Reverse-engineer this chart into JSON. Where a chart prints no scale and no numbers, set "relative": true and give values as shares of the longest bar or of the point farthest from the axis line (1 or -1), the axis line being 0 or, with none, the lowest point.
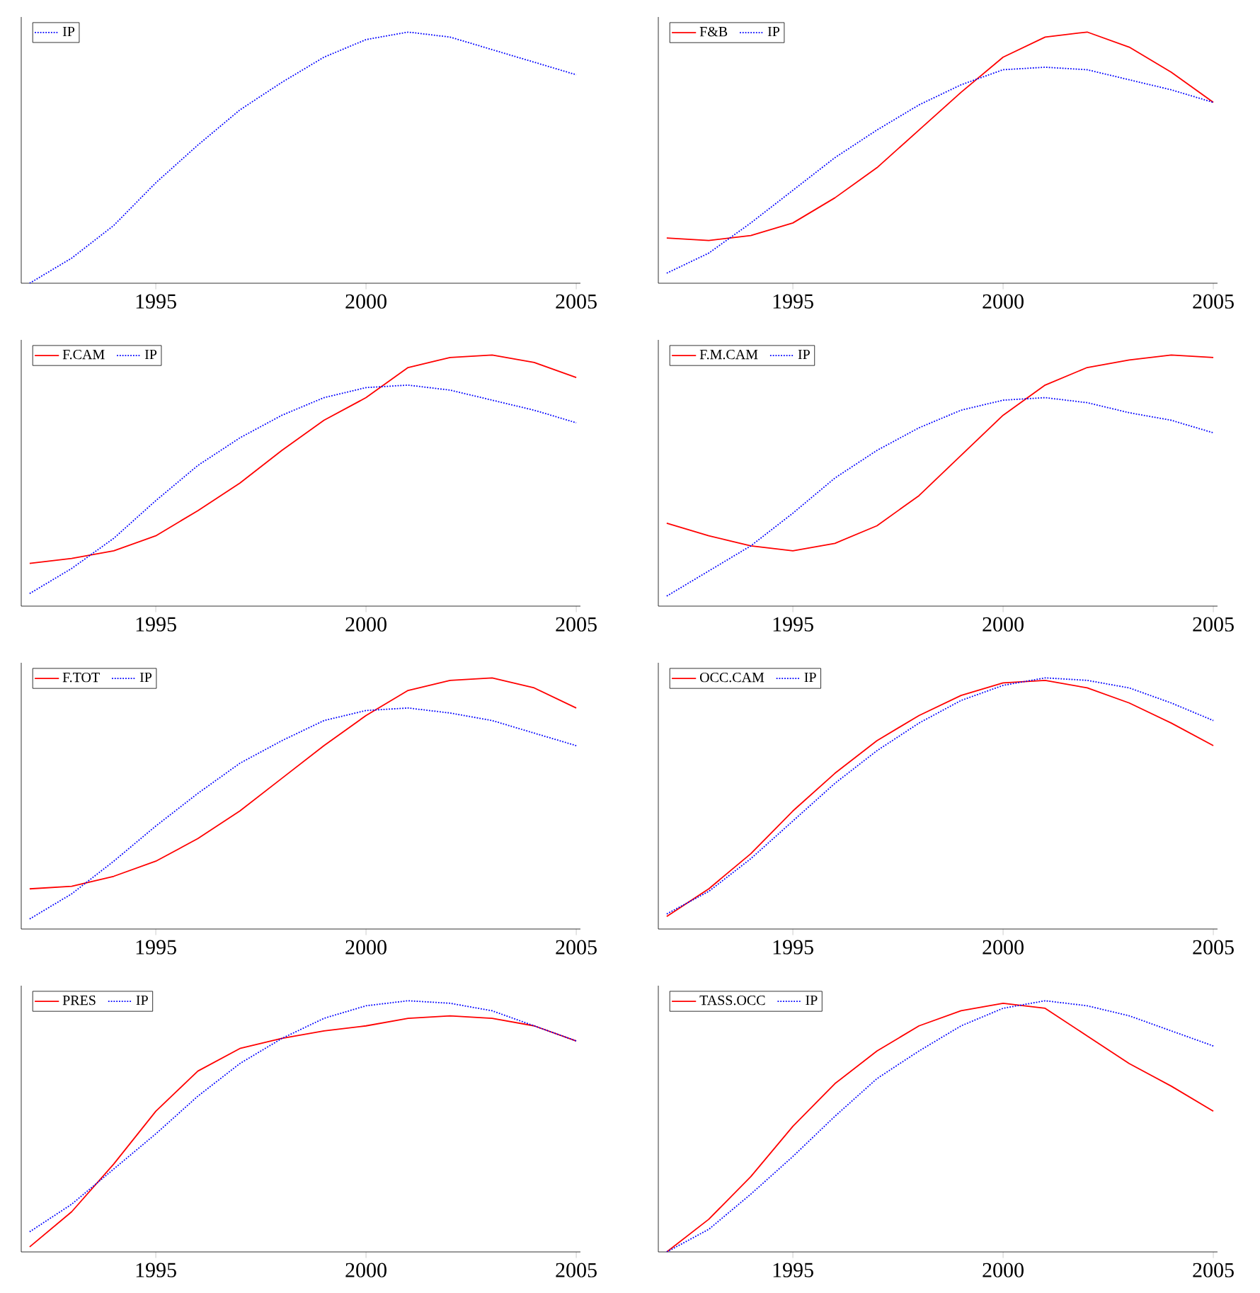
{
  "chart_data": [
    {
      "type": "line",
      "relative": true,
      "legend": "top left",
      "x": [
        1992,
        1993,
        1994,
        1995,
        1996,
        1997,
        1998,
        1999,
        2000,
        2001,
        2002,
        2003,
        2004,
        2005
      ],
      "xlim": [
        1991.8,
        2005.1
      ],
      "xticks": [
        1995,
        2000,
        2005
      ],
      "series": [
        {
          "name": "IP",
          "color": "#0000ff",
          "line_style": "dotted",
          "values": [
            0,
            0.1,
            0.23,
            0.4,
            0.55,
            0.69,
            0.8,
            0.9,
            0.97,
            1.0,
            0.98,
            0.93,
            0.88,
            0.83
          ]
        }
      ]
    },
    {
      "type": "line",
      "relative": true,
      "legend": "top left",
      "x": [
        1992,
        1993,
        1994,
        1995,
        1996,
        1997,
        1998,
        1999,
        2000,
        2001,
        2002,
        2003,
        2004,
        2005
      ],
      "xlim": [
        1991.8,
        2005.1
      ],
      "xticks": [
        1995,
        2000,
        2005
      ],
      "series": [
        {
          "name": "F&B",
          "color": "#ff0000",
          "line_style": "solid",
          "values": [
            0.18,
            0.17,
            0.19,
            0.24,
            0.34,
            0.46,
            0.61,
            0.76,
            0.9,
            0.98,
            1.0,
            0.94,
            0.84,
            0.72
          ]
        },
        {
          "name": "IP",
          "color": "#0000ff",
          "line_style": "dotted",
          "values": [
            0.04,
            0.12,
            0.24,
            0.37,
            0.5,
            0.61,
            0.71,
            0.79,
            0.85,
            0.86,
            0.85,
            0.81,
            0.77,
            0.72
          ]
        }
      ]
    },
    {
      "type": "line",
      "relative": true,
      "legend": "top left",
      "x": [
        1992,
        1993,
        1994,
        1995,
        1996,
        1997,
        1998,
        1999,
        2000,
        2001,
        2002,
        2003,
        2004,
        2005
      ],
      "xlim": [
        1991.8,
        2005.1
      ],
      "xticks": [
        1995,
        2000,
        2005
      ],
      "series": [
        {
          "name": "F.CAM",
          "color": "#ff0000",
          "line_style": "solid",
          "values": [
            0.17,
            0.19,
            0.22,
            0.28,
            0.38,
            0.49,
            0.62,
            0.74,
            0.83,
            0.95,
            0.99,
            1.0,
            0.97,
            0.91
          ]
        },
        {
          "name": "IP",
          "color": "#0000ff",
          "line_style": "dotted",
          "values": [
            0.05,
            0.15,
            0.27,
            0.42,
            0.56,
            0.67,
            0.76,
            0.83,
            0.87,
            0.88,
            0.86,
            0.82,
            0.78,
            0.73
          ]
        }
      ]
    },
    {
      "type": "line",
      "relative": true,
      "legend": "top left",
      "x": [
        1992,
        1993,
        1994,
        1995,
        1996,
        1997,
        1998,
        1999,
        2000,
        2001,
        2002,
        2003,
        2004,
        2005
      ],
      "xlim": [
        1991.8,
        2005.1
      ],
      "xticks": [
        1995,
        2000,
        2005
      ],
      "series": [
        {
          "name": "F.M.CAM",
          "color": "#ff0000",
          "line_style": "solid",
          "values": [
            0.33,
            0.28,
            0.24,
            0.22,
            0.25,
            0.32,
            0.44,
            0.6,
            0.76,
            0.88,
            0.95,
            0.98,
            1.0,
            0.99
          ]
        },
        {
          "name": "IP",
          "color": "#0000ff",
          "line_style": "dotted",
          "values": [
            0.04,
            0.14,
            0.24,
            0.37,
            0.51,
            0.62,
            0.71,
            0.78,
            0.82,
            0.83,
            0.81,
            0.77,
            0.74,
            0.69
          ]
        }
      ]
    },
    {
      "type": "line",
      "relative": true,
      "legend": "top left",
      "x": [
        1992,
        1993,
        1994,
        1995,
        1996,
        1997,
        1998,
        1999,
        2000,
        2001,
        2002,
        2003,
        2004,
        2005
      ],
      "xlim": [
        1991.8,
        2005.1
      ],
      "xticks": [
        1995,
        2000,
        2005
      ],
      "series": [
        {
          "name": "F.TOT",
          "color": "#ff0000",
          "line_style": "solid",
          "values": [
            0.16,
            0.17,
            0.21,
            0.27,
            0.36,
            0.47,
            0.6,
            0.73,
            0.85,
            0.95,
            0.99,
            1.0,
            0.96,
            0.88
          ]
        },
        {
          "name": "IP",
          "color": "#0000ff",
          "line_style": "dotted",
          "values": [
            0.04,
            0.14,
            0.27,
            0.41,
            0.54,
            0.66,
            0.75,
            0.83,
            0.87,
            0.88,
            0.86,
            0.83,
            0.78,
            0.73
          ]
        }
      ]
    },
    {
      "type": "line",
      "relative": true,
      "legend": "top left",
      "x": [
        1992,
        1993,
        1994,
        1995,
        1996,
        1997,
        1998,
        1999,
        2000,
        2001,
        2002,
        2003,
        2004,
        2005
      ],
      "xlim": [
        1991.8,
        2005.1
      ],
      "xticks": [
        1995,
        2000,
        2005
      ],
      "series": [
        {
          "name": "OCC.CAM",
          "color": "#ff0000",
          "line_style": "solid",
          "values": [
            0.05,
            0.16,
            0.3,
            0.47,
            0.62,
            0.75,
            0.85,
            0.93,
            0.98,
            0.99,
            0.96,
            0.9,
            0.82,
            0.73
          ]
        },
        {
          "name": "IP",
          "color": "#0000ff",
          "line_style": "dotted",
          "values": [
            0.06,
            0.15,
            0.28,
            0.43,
            0.58,
            0.71,
            0.82,
            0.91,
            0.97,
            1.0,
            0.99,
            0.96,
            0.9,
            0.83
          ]
        }
      ]
    },
    {
      "type": "line",
      "relative": true,
      "legend": "top left",
      "x": [
        1992,
        1993,
        1994,
        1995,
        1996,
        1997,
        1998,
        1999,
        2000,
        2001,
        2002,
        2003,
        2004,
        2005
      ],
      "xlim": [
        1991.8,
        2005.1
      ],
      "xticks": [
        1995,
        2000,
        2005
      ],
      "series": [
        {
          "name": "PRES",
          "color": "#ff0000",
          "line_style": "solid",
          "values": [
            0.02,
            0.16,
            0.35,
            0.56,
            0.72,
            0.81,
            0.85,
            0.88,
            0.9,
            0.93,
            0.94,
            0.93,
            0.9,
            0.84
          ]
        },
        {
          "name": "IP",
          "color": "#0000ff",
          "line_style": "dotted",
          "values": [
            0.08,
            0.19,
            0.33,
            0.47,
            0.62,
            0.75,
            0.85,
            0.93,
            0.98,
            1.0,
            0.99,
            0.96,
            0.9,
            0.84
          ]
        }
      ]
    },
    {
      "type": "line",
      "relative": true,
      "legend": "top left",
      "x": [
        1992,
        1993,
        1994,
        1995,
        1996,
        1997,
        1998,
        1999,
        2000,
        2001,
        2002,
        2003,
        2004,
        2005
      ],
      "xlim": [
        1991.8,
        2005.1
      ],
      "xticks": [
        1995,
        2000,
        2005
      ],
      "series": [
        {
          "name": "TASS.OCC",
          "color": "#ff0000",
          "line_style": "solid",
          "values": [
            0,
            0.13,
            0.3,
            0.5,
            0.67,
            0.8,
            0.9,
            0.96,
            0.99,
            0.97,
            0.86,
            0.75,
            0.66,
            0.56
          ]
        },
        {
          "name": "IP",
          "color": "#0000ff",
          "line_style": "dotted",
          "values": [
            0,
            0.09,
            0.23,
            0.38,
            0.54,
            0.69,
            0.8,
            0.9,
            0.97,
            1.0,
            0.98,
            0.94,
            0.88,
            0.82
          ]
        }
      ]
    }
  ]
}
